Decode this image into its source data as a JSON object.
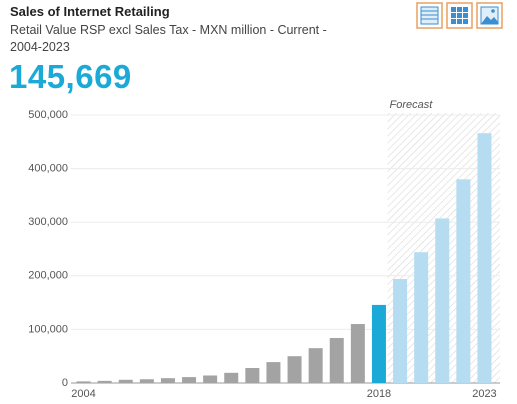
{
  "title": "Sales of Internet Retailing",
  "subtitle": "Retail Value RSP excl Sales Tax - MXN million - Current - 2004-2023",
  "headline": "145,669",
  "chart_data": {
    "type": "bar",
    "categories": [
      "2004",
      null,
      null,
      null,
      null,
      null,
      null,
      null,
      null,
      null,
      null,
      null,
      null,
      null,
      "2018",
      null,
      null,
      null,
      null,
      "2023"
    ],
    "values": [
      3000,
      4000,
      6000,
      7000,
      9000,
      11000,
      14000,
      19000,
      28000,
      39000,
      50000,
      65000,
      84000,
      110000,
      145669,
      194000,
      244000,
      307000,
      380000,
      466000
    ],
    "colors": [
      "#a3a3a3",
      "#a3a3a3",
      "#a3a3a3",
      "#a3a3a3",
      "#a3a3a3",
      "#a3a3a3",
      "#a3a3a3",
      "#a3a3a3",
      "#a3a3a3",
      "#a3a3a3",
      "#a3a3a3",
      "#a3a3a3",
      "#a3a3a3",
      "#a3a3a3",
      "#1ba9d8",
      "#b5dcf0",
      "#b5dcf0",
      "#b5dcf0",
      "#b5dcf0",
      "#b5dcf0"
    ],
    "highlight_color": "#1ba9d8",
    "forecast_color": "#b5dcf0",
    "annotation": "Forecast",
    "ylim": [
      0,
      500000
    ],
    "yticks": [
      0,
      {
        "value": 100000,
        "label": "100,000"
      },
      {
        "value": 200000,
        "label": "200,000"
      },
      {
        "value": 300000,
        "label": "300,000"
      },
      {
        "value": 400000,
        "label": "400,000"
      },
      {
        "value": 500000,
        "label": "500,000"
      }
    ],
    "grid": true
  }
}
